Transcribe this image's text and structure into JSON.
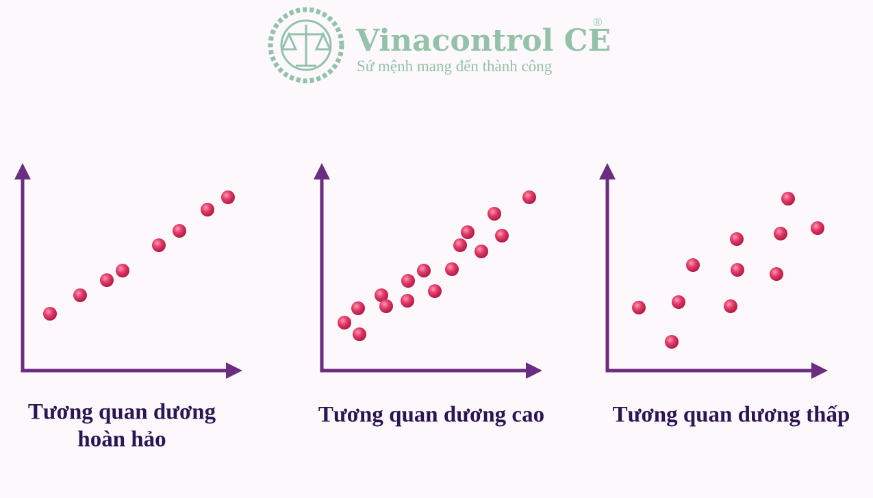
{
  "header": {
    "brand": "Vinacontrol CE",
    "registered": "®",
    "tagline": "Sứ mệnh mang đến thành công"
  },
  "panels": [
    {
      "caption": [
        "Tương quan dương",
        "hoàn hảo"
      ]
    },
    {
      "caption": [
        "Tương quan dương cao"
      ]
    },
    {
      "caption": [
        "Tương quan dương thấp"
      ]
    }
  ]
}
